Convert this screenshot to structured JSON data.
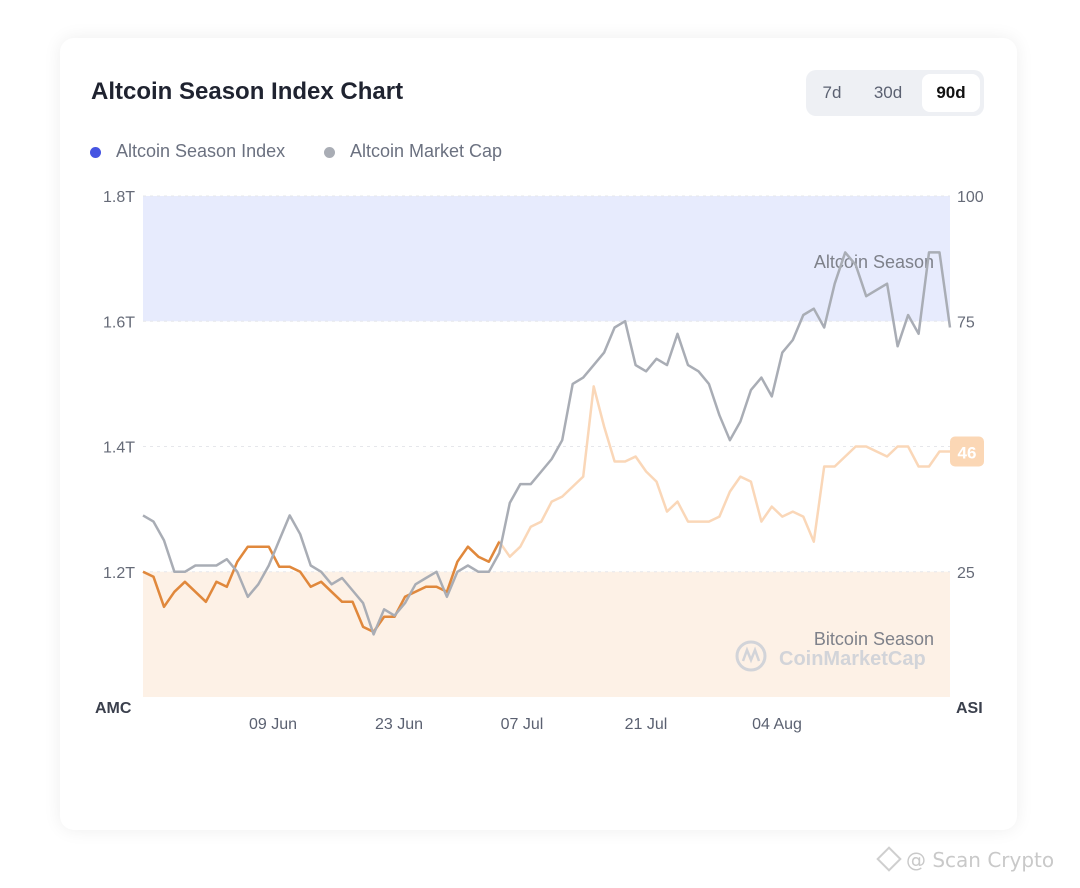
{
  "title": "Altcoin Season Index Chart",
  "tabs": [
    {
      "label": "7d",
      "active": false
    },
    {
      "label": "30d",
      "active": false
    },
    {
      "label": "90d",
      "active": true
    }
  ],
  "legend": [
    {
      "label": "Altcoin Season Index",
      "color": "#4554e2"
    },
    {
      "label": "Altcoin Market Cap",
      "color": "#a9adb5"
    }
  ],
  "colors": {
    "altcoin_zone": "#e7ebfd",
    "bitcoin_zone": "#fdf1e6",
    "index_line_light": "#fad7b8",
    "index_line_dark": "#e0883c",
    "market_cap_line": "#a9adb5",
    "badge": "#fbd7b5"
  },
  "watermark": "@ Scan Crypto",
  "chart_data": {
    "type": "line",
    "left_axis_label": "AMC",
    "right_axis_label": "ASI",
    "left_ticks": [
      "1.8T",
      "1.6T",
      "1.4T",
      "1.2T"
    ],
    "right_ticks": [
      "100",
      "75",
      "25"
    ],
    "x_ticks": [
      "09 Jun",
      "23 Jun",
      "07 Jul",
      "21 Jul",
      "04 Aug"
    ],
    "left_range": [
      1.0,
      1.8
    ],
    "right_range": [
      0,
      100
    ],
    "zones": [
      {
        "label": "Altcoin Season",
        "from": 75,
        "to": 100
      },
      {
        "label": "Bitcoin Season",
        "from": 0,
        "to": 25
      }
    ],
    "brand_mark": "CoinMarketCap",
    "current_index": "46",
    "series": [
      {
        "name": "Altcoin Market Cap",
        "axis": "left",
        "values": [
          1.29,
          1.28,
          1.25,
          1.2,
          1.2,
          1.21,
          1.21,
          1.21,
          1.22,
          1.2,
          1.16,
          1.18,
          1.21,
          1.25,
          1.29,
          1.26,
          1.21,
          1.2,
          1.18,
          1.19,
          1.17,
          1.15,
          1.1,
          1.14,
          1.13,
          1.15,
          1.18,
          1.19,
          1.2,
          1.16,
          1.2,
          1.21,
          1.2,
          1.2,
          1.23,
          1.31,
          1.34,
          1.34,
          1.36,
          1.38,
          1.41,
          1.5,
          1.51,
          1.53,
          1.55,
          1.59,
          1.6,
          1.53,
          1.52,
          1.54,
          1.53,
          1.58,
          1.53,
          1.52,
          1.5,
          1.45,
          1.41,
          1.44,
          1.49,
          1.51,
          1.48,
          1.55,
          1.57,
          1.61,
          1.62,
          1.59,
          1.66,
          1.71,
          1.69,
          1.64,
          1.65,
          1.66,
          1.56,
          1.61,
          1.58,
          1.71,
          1.71,
          1.59
        ]
      },
      {
        "name": "Altcoin Season Index",
        "axis": "right",
        "values": [
          25,
          24,
          18,
          21,
          23,
          21,
          19,
          23,
          22,
          27,
          30,
          30,
          30,
          26,
          26,
          25,
          22,
          23,
          21,
          19,
          19,
          14,
          13,
          16,
          16,
          20,
          21,
          22,
          22,
          21,
          27,
          30,
          28,
          27,
          31,
          28,
          30,
          34,
          35,
          39,
          40,
          42,
          44,
          62,
          54,
          47,
          47,
          48,
          45,
          43,
          37,
          39,
          35,
          35,
          35,
          36,
          41,
          44,
          43,
          35,
          38,
          36,
          37,
          36,
          31,
          46,
          46,
          48,
          50,
          50,
          49,
          48,
          50,
          50,
          46,
          46,
          49,
          49
        ]
      }
    ]
  }
}
